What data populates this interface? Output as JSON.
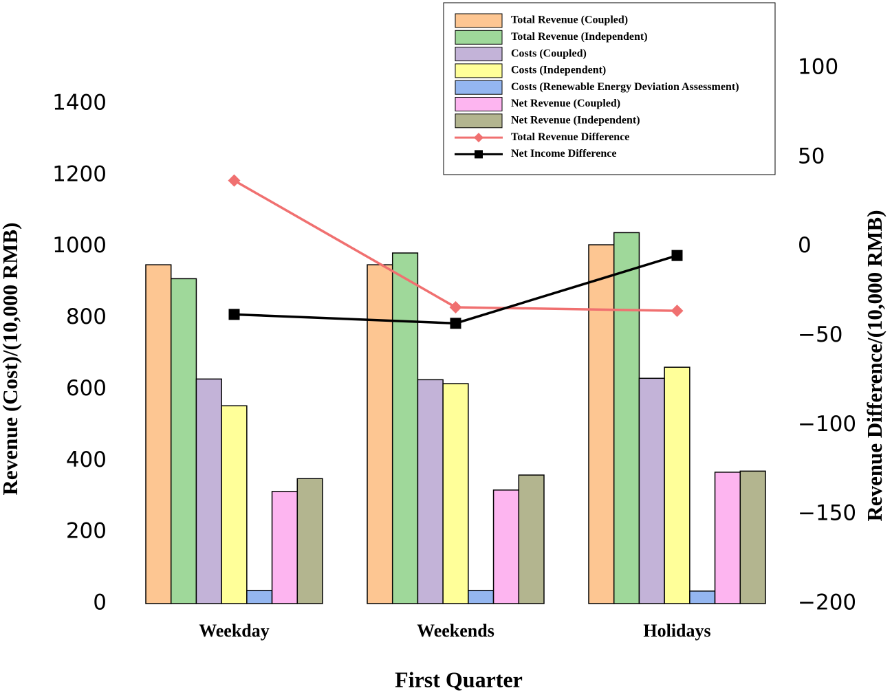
{
  "chart_data": {
    "type": "bar",
    "xlabel": "First Quarter",
    "ylabel": "Revenue (Cost)/(10,000 RMB)",
    "y2label": "Revenue Difference/(10,000 RMB)",
    "categories": [
      "Weekday",
      "Weekends",
      "Holidays"
    ],
    "ylim": [
      0,
      1500
    ],
    "yticks": [
      0,
      200,
      400,
      600,
      800,
      1000,
      1200,
      1400
    ],
    "y2lim": [
      -200,
      100
    ],
    "y2ticks": [
      {
        "value": -200,
        "label": "−200"
      },
      {
        "value": -150,
        "label": "−150"
      },
      {
        "value": -100,
        "label": "−100"
      },
      {
        "value": -50,
        "label": "−50"
      },
      0,
      50,
      100
    ],
    "legend": "top-right",
    "series": [
      {
        "name": "Total Revenue (Coupled)",
        "color": "#fdc692",
        "values": [
          949,
          949,
          1005
        ]
      },
      {
        "name": "Total Revenue (Independent)",
        "color": "#9fd89a",
        "values": [
          910,
          982,
          1039
        ]
      },
      {
        "name": "Costs (Coupled)",
        "color": "#c3b3d8",
        "values": [
          629,
          627,
          631
        ]
      },
      {
        "name": "Costs (Independent)",
        "color": "#ffff99",
        "values": [
          554,
          616,
          662
        ]
      },
      {
        "name": "Costs (Renewable Energy Deviation Assessment)",
        "color": "#94b6f0",
        "values": [
          37,
          37,
          35
        ]
      },
      {
        "name": "Net Revenue (Coupled)",
        "color": "#fdb5f0",
        "values": [
          314,
          318,
          368
        ]
      },
      {
        "name": "Net Revenue (Independent)",
        "color": "#b3b58f",
        "values": [
          350,
          360,
          371
        ]
      },
      {
        "name": "Total Revenue Difference",
        "color": "#f07070",
        "type": "line",
        "marker": "diamond",
        "axis": "y2",
        "values": [
          37,
          -34,
          -36
        ]
      },
      {
        "name": "Net Income Difference",
        "color": "#000000",
        "type": "line",
        "marker": "square",
        "axis": "y2",
        "values": [
          -38,
          -43,
          -5
        ]
      }
    ]
  }
}
